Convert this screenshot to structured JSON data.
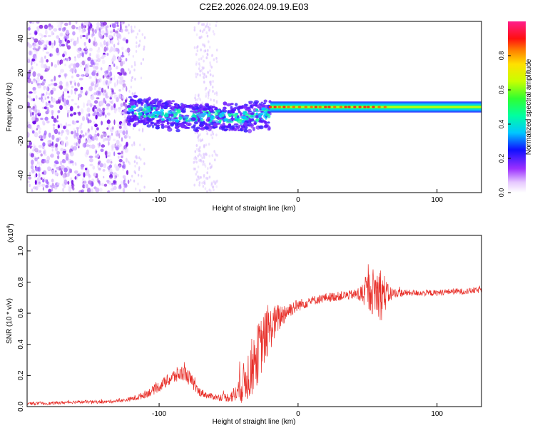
{
  "chart_data": [
    {
      "type": "heatmap",
      "title": "C2E2.2026.024.09.19.E03",
      "xlabel": "Height of straight line (km)",
      "ylabel": "Frequency (Hz)",
      "xlim": [
        -195,
        132
      ],
      "ylim": [
        -50,
        50
      ],
      "xticks": [
        -100,
        0,
        100
      ],
      "xtick_labels": [
        "-100",
        "0",
        "100"
      ],
      "yticks": [
        -40,
        -20,
        0,
        20,
        40
      ],
      "ytick_labels": [
        "-40",
        "-20",
        "0",
        "20",
        "40"
      ],
      "colorbar": {
        "label": "Normalized spectral amplitude",
        "range": [
          0,
          1
        ],
        "ticks": [
          0.0,
          0.2,
          0.4,
          0.6,
          0.8
        ],
        "tick_labels": [
          "0.0",
          "0.2",
          "0.4",
          "0.6",
          "0.8"
        ]
      },
      "regions": [
        {
          "name": "scattered noise",
          "x": [
            -195,
            -122
          ],
          "freq": [
            -50,
            50
          ],
          "amplitude": 0.12
        },
        {
          "name": "faint noise band",
          "x": [
            -75,
            -58
          ],
          "freq": [
            -50,
            50
          ],
          "amplitude": 0.08
        },
        {
          "name": "broad signal",
          "x": [
            -122,
            -20
          ],
          "freq": [
            -12,
            8
          ],
          "amplitude": 0.45
        },
        {
          "name": "narrow carrier",
          "x": [
            -20,
            132
          ],
          "freq": [
            -2,
            2
          ],
          "amplitude": 0.5
        },
        {
          "name": "carrier peaks",
          "x": [
            -20,
            65
          ],
          "freq": [
            -1,
            1
          ],
          "amplitude": 0.9
        }
      ]
    },
    {
      "type": "line",
      "title": "",
      "xlabel": "Height of straight line (km)",
      "ylabel": "SNR (10 * v/v)",
      "y_scale_label": "(x10",
      "y_scale_exponent": "4",
      "xlim": [
        -195,
        132
      ],
      "ylim": [
        0,
        1.1
      ],
      "xticks": [
        -100,
        0,
        100
      ],
      "xtick_labels": [
        "-100",
        "0",
        "100"
      ],
      "yticks": [
        0.0,
        0.2,
        0.4,
        0.6,
        0.8,
        1.0
      ],
      "ytick_labels": [
        "0.0",
        "0.2",
        "0.4",
        "0.6",
        "0.8",
        "1.0"
      ],
      "series": [
        {
          "name": "SNR",
          "color": "#e8302a",
          "x": [
            -195,
            -180,
            -160,
            -140,
            -125,
            -115,
            -105,
            -95,
            -88,
            -82,
            -78,
            -72,
            -65,
            -58,
            -50,
            -45,
            -40,
            -35,
            -30,
            -25,
            -20,
            -15,
            -10,
            -5,
            0,
            10,
            20,
            30,
            40,
            45,
            50,
            55,
            60,
            65,
            70,
            80,
            90,
            100,
            110,
            120,
            132
          ],
          "y": [
            0.02,
            0.02,
            0.03,
            0.03,
            0.04,
            0.06,
            0.1,
            0.16,
            0.2,
            0.22,
            0.18,
            0.1,
            0.07,
            0.06,
            0.06,
            0.08,
            0.14,
            0.22,
            0.32,
            0.42,
            0.5,
            0.56,
            0.6,
            0.63,
            0.65,
            0.68,
            0.7,
            0.71,
            0.72,
            0.72,
            0.74,
            0.74,
            0.73,
            0.72,
            0.73,
            0.73,
            0.73,
            0.73,
            0.74,
            0.74,
            0.75
          ],
          "noise_envelope": [
            0.01,
            0.01,
            0.01,
            0.01,
            0.01,
            0.02,
            0.03,
            0.04,
            0.05,
            0.05,
            0.05,
            0.03,
            0.02,
            0.02,
            0.03,
            0.06,
            0.12,
            0.18,
            0.2,
            0.18,
            0.14,
            0.1,
            0.07,
            0.05,
            0.04,
            0.03,
            0.03,
            0.03,
            0.03,
            0.06,
            0.12,
            0.16,
            0.18,
            0.06,
            0.03,
            0.02,
            0.02,
            0.02,
            0.02,
            0.02,
            0.02
          ]
        }
      ]
    }
  ]
}
